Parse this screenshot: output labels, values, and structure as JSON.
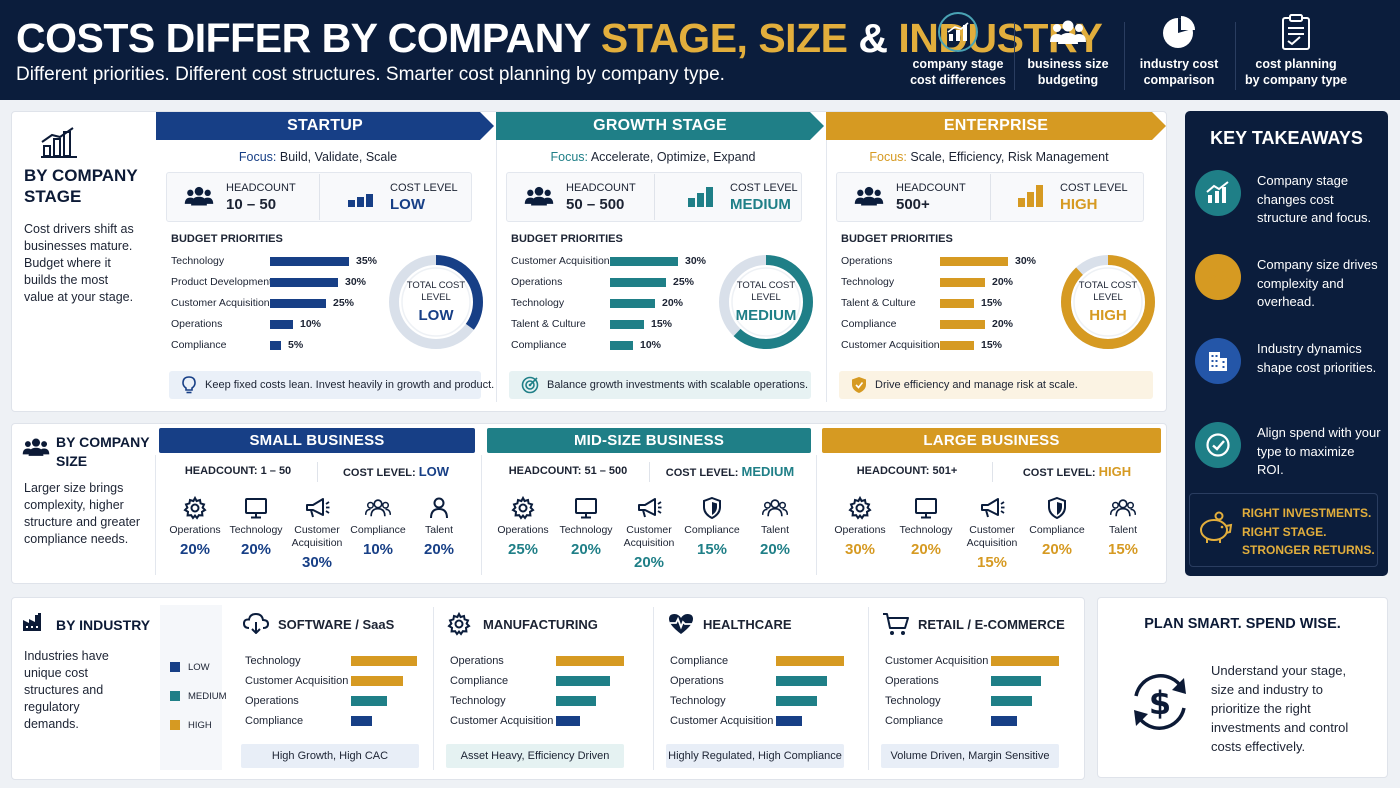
{
  "header": {
    "title_part1": "COSTS DIFFER BY COMPANY ",
    "title_part2": "STAGE, SIZE",
    "title_part3": " & ",
    "title_part4": "INDUSTRY",
    "subtitle": "Different priorities. Different cost structures. Smarter cost planning by company type.",
    "icons": [
      {
        "icon": "bar-chart-icon",
        "line1": "company stage",
        "line2": "cost differences"
      },
      {
        "icon": "people-icon",
        "line1": "business size",
        "line2": "budgeting"
      },
      {
        "icon": "pie-chart-icon",
        "line1": "industry cost",
        "line2": "comparison"
      },
      {
        "icon": "clipboard-icon",
        "line1": "cost planning",
        "line2": "by company type"
      }
    ]
  },
  "colors": {
    "low": "#173f86",
    "medium": "#1f7f87",
    "high": "#d69a22",
    "navy": "#0b1d3c"
  },
  "stage": {
    "title_line1": "BY COMPANY",
    "title_line2": "STAGE",
    "description": "Cost drivers shift as businesses mature. Budget where it builds the most value at your stage.",
    "labels": {
      "focus": "Focus:",
      "headcount": "HEADCOUNT",
      "cost_level": "COST LEVEL",
      "budget_priorities": "BUDGET PRIORITIES",
      "gauge_line1": "TOTAL COST",
      "gauge_line2": "LEVEL"
    },
    "columns": [
      {
        "name": "STARTUP",
        "focus": "Build, Validate, Scale",
        "headcount": "10 – 50",
        "cost_level": "LOW",
        "gauge_fill": 0.35,
        "priorities": [
          {
            "label": "Technology",
            "value": 35,
            "text": "35%"
          },
          {
            "label": "Product Development",
            "value": 30,
            "text": "30%"
          },
          {
            "label": "Customer Acquisition",
            "value": 25,
            "text": "25%"
          },
          {
            "label": "Operations",
            "value": 10,
            "text": "10%"
          },
          {
            "label": "Compliance",
            "value": 5,
            "text": "5%"
          }
        ],
        "tip": "Keep fixed costs lean. Invest heavily in growth and product."
      },
      {
        "name": "GROWTH STAGE",
        "focus": "Accelerate, Optimize, Expand",
        "headcount": "50 – 500",
        "cost_level": "MEDIUM",
        "gauge_fill": 0.62,
        "priorities": [
          {
            "label": "Customer Acquisition",
            "value": 30,
            "text": "30%"
          },
          {
            "label": "Operations",
            "value": 25,
            "text": "25%"
          },
          {
            "label": "Technology",
            "value": 20,
            "text": "20%"
          },
          {
            "label": "Talent & Culture",
            "value": 15,
            "text": "15%"
          },
          {
            "label": "Compliance",
            "value": 10,
            "text": "10%"
          }
        ],
        "tip": "Balance growth investments with scalable operations."
      },
      {
        "name": "ENTERPRISE",
        "focus": "Scale, Efficiency, Risk Management",
        "headcount": "500+",
        "cost_level": "HIGH",
        "gauge_fill": 0.88,
        "priorities": [
          {
            "label": "Operations",
            "value": 30,
            "text": "30%"
          },
          {
            "label": "Technology",
            "value": 20,
            "text": "20%"
          },
          {
            "label": "Talent & Culture",
            "value": 15,
            "text": "15%"
          },
          {
            "label": "Compliance",
            "value": 20,
            "text": "20%"
          },
          {
            "label": "Customer Acquisition",
            "value": 15,
            "text": "15%"
          }
        ],
        "tip": "Drive efficiency and manage risk at scale."
      }
    ]
  },
  "size": {
    "title_line1": "BY COMPANY",
    "title_line2": "SIZE",
    "description": "Larger size brings complexity, higher structure and greater compliance needs.",
    "labels": {
      "headcount": "HEADCOUNT: ",
      "cost_level": "COST LEVEL: "
    },
    "columns": [
      {
        "name": "SMALL BUSINESS",
        "headcount": "1 – 50",
        "cost_level": "LOW",
        "items": [
          {
            "icon": "gear-icon",
            "label": "Operations",
            "value": "20%"
          },
          {
            "icon": "monitor-icon",
            "label": "Technology",
            "value": "20%"
          },
          {
            "icon": "megaphone-icon",
            "label": "Customer Acquisition",
            "value": "30%"
          },
          {
            "icon": "people-icon",
            "label": "Compliance",
            "value": "10%"
          },
          {
            "icon": "person-icon",
            "label": "Talent",
            "value": "20%"
          }
        ]
      },
      {
        "name": "MID-SIZE BUSINESS",
        "headcount": "51 – 500",
        "cost_level": "MEDIUM",
        "items": [
          {
            "icon": "gear-icon",
            "label": "Operations",
            "value": "25%"
          },
          {
            "icon": "monitor-icon",
            "label": "Technology",
            "value": "20%"
          },
          {
            "icon": "megaphone-icon",
            "label": "Customer Acquisition",
            "value": "20%"
          },
          {
            "icon": "shield-icon",
            "label": "Compliance",
            "value": "15%"
          },
          {
            "icon": "people-icon",
            "label": "Talent",
            "value": "20%"
          }
        ]
      },
      {
        "name": "LARGE BUSINESS",
        "headcount": "501+",
        "cost_level": "HIGH",
        "items": [
          {
            "icon": "gear-icon",
            "label": "Operations",
            "value": "30%"
          },
          {
            "icon": "monitor-icon",
            "label": "Technology",
            "value": "20%"
          },
          {
            "icon": "megaphone-icon",
            "label": "Customer Acquisition",
            "value": "15%"
          },
          {
            "icon": "shield-icon",
            "label": "Compliance",
            "value": "20%"
          },
          {
            "icon": "people-icon",
            "label": "Talent",
            "value": "15%"
          }
        ]
      }
    ]
  },
  "industry": {
    "title": "BY INDUSTRY",
    "description": "Industries have unique cost structures and regulatory demands.",
    "legend": [
      {
        "label": "LOW",
        "color": "#173f86"
      },
      {
        "label": "MEDIUM",
        "color": "#1f7f87"
      },
      {
        "label": "HIGH",
        "color": "#d69a22"
      }
    ],
    "columns": [
      {
        "name": "SOFTWARE / SaaS",
        "icon": "cloud-icon",
        "tag": "High Growth, High CAC",
        "rows": [
          {
            "label": "Technology",
            "level": "HIGH",
            "bar": 0.95
          },
          {
            "label": "Customer Acquisition",
            "level": "HIGH",
            "bar": 0.75
          },
          {
            "label": "Operations",
            "level": "MEDIUM",
            "bar": 0.52
          },
          {
            "label": "Compliance",
            "level": "LOW",
            "bar": 0.3
          }
        ]
      },
      {
        "name": "MANUFACTURING",
        "icon": "gear-icon",
        "tag": "Asset Heavy, Efficiency Driven",
        "rows": [
          {
            "label": "Operations",
            "level": "HIGH",
            "bar": 0.98
          },
          {
            "label": "Compliance",
            "level": "MEDIUM",
            "bar": 0.78
          },
          {
            "label": "Technology",
            "level": "MEDIUM",
            "bar": 0.58
          },
          {
            "label": "Customer Acquisition",
            "level": "LOW",
            "bar": 0.35
          }
        ]
      },
      {
        "name": "HEALTHCARE",
        "icon": "heart-pulse-icon",
        "tag": "Highly Regulated, High Compliance",
        "rows": [
          {
            "label": "Compliance",
            "level": "HIGH",
            "bar": 0.98
          },
          {
            "label": "Operations",
            "level": "MEDIUM",
            "bar": 0.74
          },
          {
            "label": "Technology",
            "level": "MEDIUM",
            "bar": 0.6
          },
          {
            "label": "Customer Acquisition",
            "level": "LOW",
            "bar": 0.38
          }
        ]
      },
      {
        "name": "RETAIL / E-COMMERCE",
        "icon": "cart-icon",
        "tag": "Volume Driven, Margin Sensitive",
        "rows": [
          {
            "label": "Customer Acquisition",
            "level": "HIGH",
            "bar": 0.98
          },
          {
            "label": "Operations",
            "level": "MEDIUM",
            "bar": 0.73
          },
          {
            "label": "Technology",
            "level": "MEDIUM",
            "bar": 0.6
          },
          {
            "label": "Compliance",
            "level": "LOW",
            "bar": 0.38
          }
        ]
      }
    ]
  },
  "takeaways": {
    "title": "KEY TAKEAWAYS",
    "items": [
      {
        "icon": "chart-up-icon",
        "text": "Company stage changes cost structure and focus.",
        "color": "#1f7f87"
      },
      {
        "icon": "people-icon",
        "text": "Company size drives complexity and overhead.",
        "color": "#d69a22"
      },
      {
        "icon": "building-icon",
        "text": "Industry dynamics shape cost priorities.",
        "color": "#2456a8"
      },
      {
        "icon": "check-icon",
        "text": "Align spend with your type to maximize ROI.",
        "color": "#1f7f87"
      }
    ],
    "callout_line1": "RIGHT INVESTMENTS.",
    "callout_line2": "RIGHT STAGE.",
    "callout_line3": "STRONGER RETURNS."
  },
  "plan": {
    "title": "PLAN SMART. SPEND WISE.",
    "text": "Understand your stage, size and industry to prioritize the right investments and control costs effectively."
  }
}
